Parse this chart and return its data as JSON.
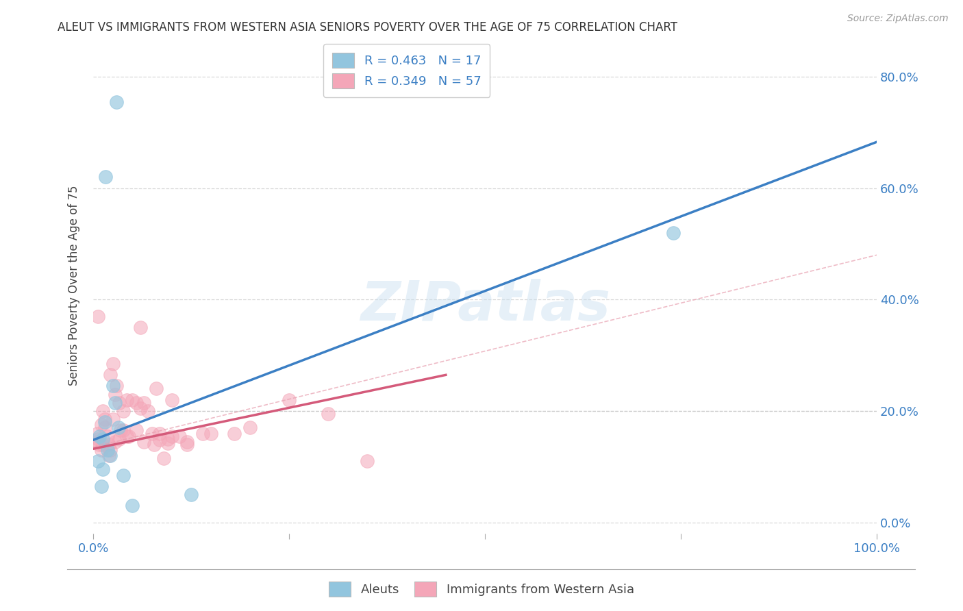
{
  "title": "ALEUT VS IMMIGRANTS FROM WESTERN ASIA SENIORS POVERTY OVER THE AGE OF 75 CORRELATION CHART",
  "source": "Source: ZipAtlas.com",
  "ylabel": "Seniors Poverty Over the Age of 75",
  "xlim": [
    0,
    1.0
  ],
  "ylim": [
    -0.02,
    0.87
  ],
  "legend1_label": "Aleuts",
  "legend2_label": "Immigrants from Western Asia",
  "R1": 0.463,
  "N1": 17,
  "R2": 0.349,
  "N2": 57,
  "blue_color": "#92c5de",
  "pink_color": "#f4a6b8",
  "blue_line_color": "#3b7fc4",
  "pink_line_color": "#d45a7a",
  "watermark": "ZIPatlas",
  "blue_intercept": 0.148,
  "blue_slope": 0.535,
  "pink_intercept": 0.132,
  "pink_slope": 0.295,
  "blue_points_x": [
    0.008,
    0.012,
    0.018,
    0.022,
    0.028,
    0.015,
    0.025,
    0.032,
    0.01,
    0.006,
    0.038,
    0.012,
    0.016,
    0.03,
    0.125,
    0.74,
    0.05
  ],
  "blue_points_y": [
    0.155,
    0.15,
    0.13,
    0.12,
    0.215,
    0.18,
    0.245,
    0.17,
    0.065,
    0.11,
    0.085,
    0.095,
    0.62,
    0.755,
    0.05,
    0.52,
    0.03
  ],
  "pink_points_x": [
    0.005,
    0.01,
    0.006,
    0.02,
    0.025,
    0.03,
    0.01,
    0.005,
    0.015,
    0.02,
    0.006,
    0.012,
    0.022,
    0.028,
    0.033,
    0.038,
    0.043,
    0.05,
    0.055,
    0.06,
    0.065,
    0.07,
    0.078,
    0.085,
    0.09,
    0.095,
    0.1,
    0.11,
    0.12,
    0.14,
    0.06,
    0.08,
    0.1,
    0.12,
    0.15,
    0.18,
    0.2,
    0.25,
    0.008,
    0.012,
    0.018,
    0.022,
    0.028,
    0.033,
    0.038,
    0.043,
    0.015,
    0.025,
    0.035,
    0.045,
    0.055,
    0.065,
    0.075,
    0.085,
    0.095,
    0.3,
    0.35
  ],
  "pink_points_y": [
    0.145,
    0.13,
    0.15,
    0.12,
    0.285,
    0.245,
    0.175,
    0.16,
    0.185,
    0.14,
    0.37,
    0.2,
    0.265,
    0.23,
    0.215,
    0.2,
    0.22,
    0.22,
    0.215,
    0.205,
    0.215,
    0.2,
    0.14,
    0.16,
    0.115,
    0.15,
    0.22,
    0.155,
    0.14,
    0.16,
    0.35,
    0.24,
    0.155,
    0.145,
    0.16,
    0.16,
    0.17,
    0.22,
    0.14,
    0.14,
    0.155,
    0.13,
    0.145,
    0.15,
    0.165,
    0.155,
    0.17,
    0.185,
    0.165,
    0.155,
    0.165,
    0.145,
    0.16,
    0.148,
    0.142,
    0.195,
    0.11
  ],
  "grid_color": "#d8d8d8",
  "grid_yticks": [
    0.0,
    0.2,
    0.4,
    0.6,
    0.8
  ],
  "right_yticklabels": [
    "0.0%",
    "20.0%",
    "40.0%",
    "60.0%",
    "80.0%"
  ],
  "xtick_positions": [
    0.0,
    0.25,
    0.5,
    0.75,
    1.0
  ],
  "xticklabels": [
    "0.0%",
    "",
    "",
    "",
    "100.0%"
  ]
}
